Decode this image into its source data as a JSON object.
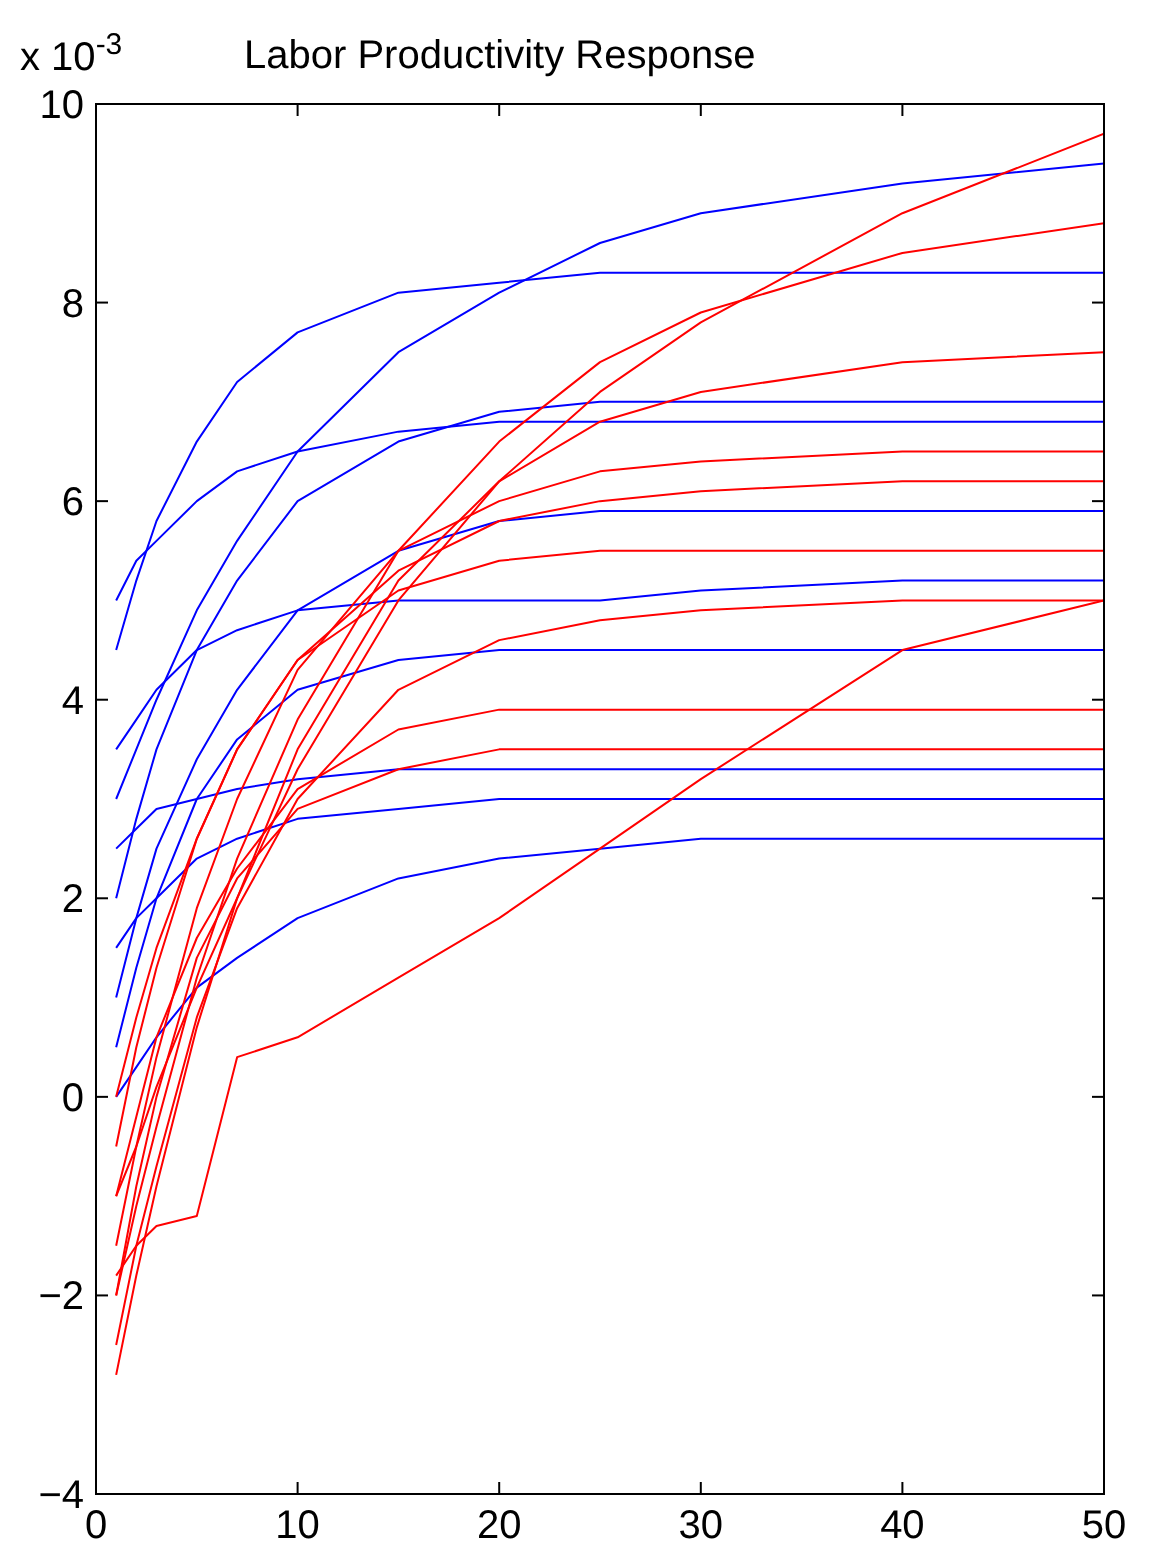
{
  "chart_data": {
    "type": "line",
    "title": "Labor Productivity Response",
    "annotations": [
      "x 10$^{-3}$"
    ],
    "x": [
      1,
      2,
      3,
      5,
      7,
      10,
      15,
      20,
      25,
      30,
      40,
      50
    ],
    "xlim": [
      0,
      50
    ],
    "xticks": [
      0,
      10,
      20,
      30,
      40,
      50
    ],
    "ylim": [
      -4,
      10
    ],
    "yticks": [
      -4,
      -2,
      0,
      2,
      4,
      6,
      8,
      10
    ],
    "grid": false,
    "marker": "none",
    "line_style": "solid",
    "series": [
      {
        "color": "#0000ff",
        "values": [
          3,
          3.5,
          4.0,
          4.9,
          5.6,
          6.5,
          7.5,
          8.1,
          8.6,
          8.9,
          9.2,
          9.4
        ]
      },
      {
        "color": "#0000ff",
        "values": [
          4.5,
          5.2,
          5.8,
          6.6,
          7.2,
          7.7,
          8.1,
          8.2,
          8.3,
          8.3,
          8.3,
          8.3
        ]
      },
      {
        "color": "#0000ff",
        "values": [
          2,
          2.8,
          3.5,
          4.5,
          5.2,
          6.0,
          6.6,
          6.9,
          7.0,
          7.0,
          7.0,
          7.0
        ]
      },
      {
        "color": "#0000ff",
        "values": [
          1,
          1.8,
          2.5,
          3.4,
          4.1,
          4.9,
          5.5,
          5.8,
          5.9,
          5.9,
          5.9,
          5.9
        ]
      },
      {
        "color": "#0000ff",
        "values": [
          3.5,
          3.8,
          4.1,
          4.5,
          4.7,
          4.9,
          5.0,
          5.0,
          5.0,
          5.1,
          5.2,
          5.2
        ]
      },
      {
        "color": "#0000ff",
        "values": [
          0.5,
          1.3,
          2.0,
          3.0,
          3.6,
          4.1,
          4.4,
          4.5,
          4.5,
          4.5,
          4.5,
          4.5
        ]
      },
      {
        "color": "#0000ff",
        "values": [
          2.5,
          2.7,
          2.9,
          3.0,
          3.1,
          3.2,
          3.3,
          3.3,
          3.3,
          3.3,
          3.3,
          3.3
        ]
      },
      {
        "color": "#0000ff",
        "values": [
          0,
          0.3,
          0.6,
          1.1,
          1.4,
          1.8,
          2.2,
          2.4,
          2.5,
          2.6,
          2.6,
          2.6
        ]
      },
      {
        "color": "#0000ff",
        "values": [
          5,
          5.4,
          5.6,
          6.0,
          6.3,
          6.5,
          6.7,
          6.8,
          6.8,
          6.8,
          6.8,
          6.8
        ]
      },
      {
        "color": "#0000ff",
        "values": [
          1.5,
          1.8,
          2.0,
          2.4,
          2.6,
          2.8,
          2.9,
          3.0,
          3.0,
          3.0,
          3.0,
          3.0
        ]
      },
      {
        "color": "#ff0000",
        "values": [
          -1,
          -0.5,
          0.1,
          1.1,
          2.0,
          3.3,
          5.0,
          6.2,
          7.1,
          7.8,
          8.9,
          9.7
        ]
      },
      {
        "color": "#ff0000",
        "values": [
          -2,
          -1.1,
          -0.3,
          1.2,
          2.4,
          3.8,
          5.5,
          6.6,
          7.4,
          7.9,
          8.5,
          8.8
        ]
      },
      {
        "color": "#ff0000",
        "values": [
          -2.8,
          -1.8,
          -0.9,
          0.7,
          2.0,
          3.5,
          5.2,
          6.2,
          6.8,
          7.1,
          7.4,
          7.5
        ]
      },
      {
        "color": "#ff0000",
        "values": [
          -1.5,
          -0.5,
          0.4,
          1.9,
          3.0,
          4.3,
          5.5,
          6.0,
          6.3,
          6.4,
          6.5,
          6.5
        ]
      },
      {
        "color": "#ff0000",
        "values": [
          -0.5,
          0.5,
          1.3,
          2.6,
          3.5,
          4.4,
          5.1,
          5.4,
          5.5,
          5.5,
          5.5,
          5.5
        ]
      },
      {
        "color": "#ff0000",
        "values": [
          -2.5,
          -1.5,
          -0.7,
          0.8,
          1.9,
          3.0,
          4.1,
          4.6,
          4.8,
          4.9,
          5.0,
          5.0
        ]
      },
      {
        "color": "#ff0000",
        "values": [
          -1,
          -0.2,
          0.6,
          1.6,
          2.3,
          3.1,
          3.7,
          3.9,
          3.9,
          3.9,
          3.9,
          3.9
        ]
      },
      {
        "color": "#ff0000",
        "values": [
          -1.8,
          -1.5,
          -1.3,
          -1.2,
          0.4,
          0.6,
          1.2,
          1.8,
          2.5,
          3.2,
          4.5,
          5.0
        ]
      },
      {
        "color": "#ff0000",
        "values": [
          -2,
          -0.9,
          0.0,
          1.4,
          2.2,
          2.9,
          3.3,
          3.5,
          3.5,
          3.5,
          3.5,
          3.5
        ]
      },
      {
        "color": "#ff0000",
        "values": [
          0,
          0.8,
          1.5,
          2.6,
          3.5,
          4.4,
          5.3,
          5.8,
          6.0,
          6.1,
          6.2,
          6.2
        ]
      }
    ]
  }
}
